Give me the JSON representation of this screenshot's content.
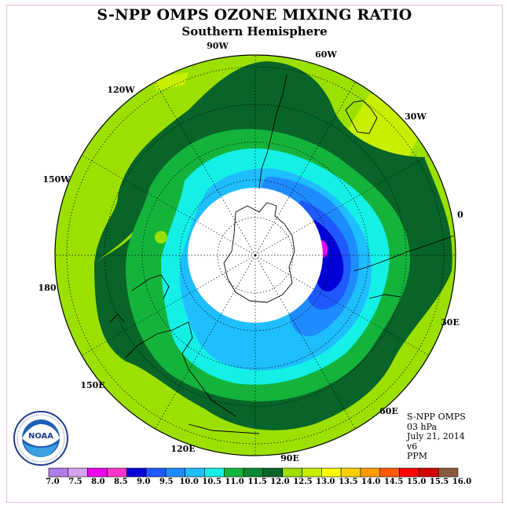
{
  "title": "S-NPP OMPS OZONE MIXING RATIO",
  "subtitle": "Southern Hemisphere",
  "longitude_labels": [
    "90W",
    "60W",
    "30W",
    "0",
    "30E",
    "60E",
    "90E",
    "120E",
    "150E",
    "180",
    "150W",
    "120W"
  ],
  "info": {
    "instrument": "S-NPP OMPS",
    "pressure": "03 hPa",
    "date": "July 21, 2014",
    "version": "v6",
    "units": "PPM"
  },
  "logo_text": "NOAA",
  "colorbar": {
    "labels": [
      "7.0",
      "7.5",
      "8.0",
      "8.5",
      "9.0",
      "9.5",
      "10.0",
      "10.5",
      "11.0",
      "11.5",
      "12.0",
      "12.5",
      "13.0",
      "13.5",
      "14.0",
      "14.5",
      "15.0",
      "15.5",
      "16.0"
    ],
    "colors": [
      "#b07ce8",
      "#d8a0f0",
      "#ee00ee",
      "#ff33cc",
      "#0000d8",
      "#1e5aff",
      "#1e8cff",
      "#1ebeff",
      "#14f0e6",
      "#14b43c",
      "#0a8a32",
      "#086428",
      "#9be000",
      "#c8ee00",
      "#ffff00",
      "#ffd000",
      "#ff9a00",
      "#ff5a00",
      "#ff0000",
      "#d20000",
      "#8c5a3c"
    ]
  },
  "map_colors": {
    "light_green": "#9be000",
    "yellow_green": "#c8ee00",
    "mid_green": "#14b43c",
    "dark_green": "#086428",
    "cyan": "#14f0e6",
    "light_blue": "#1ebeff",
    "mid_blue": "#1e8cff",
    "blue": "#1e5aff",
    "deep_blue": "#0000d8",
    "magenta": "#ee00ee",
    "polar_night": "#ffffff"
  }
}
